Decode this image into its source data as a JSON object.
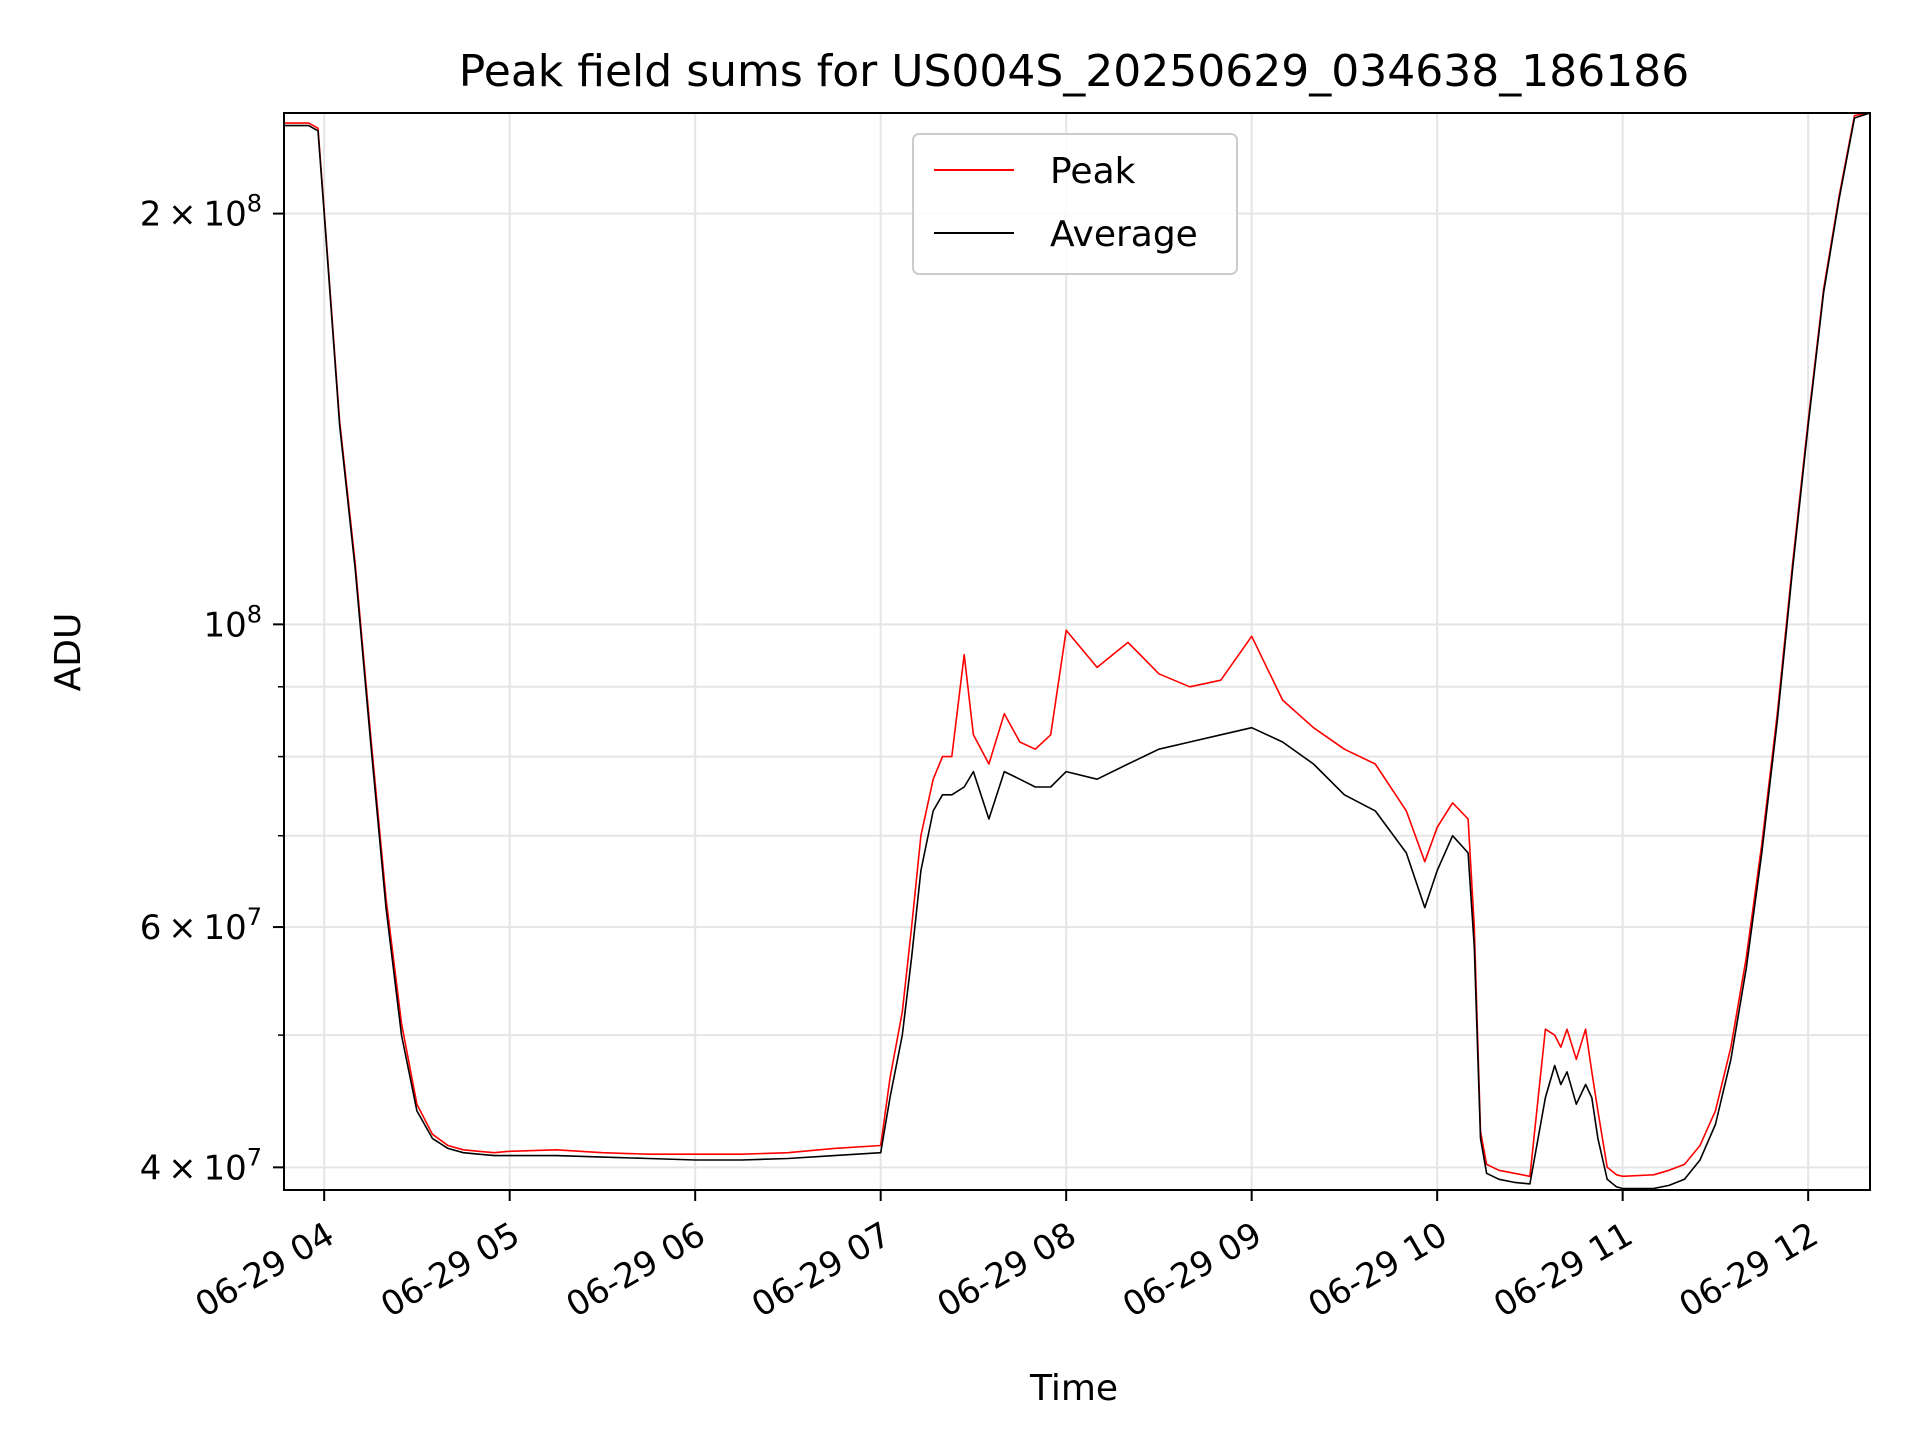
{
  "chart_data": {
    "type": "line",
    "title": "Peak field sums for US004S_20250629_034638_186186",
    "xlabel": "Time",
    "ylabel": "ADU",
    "yscale": "log",
    "ylim": [
      38500000,
      237000000
    ],
    "xlim": [
      "06-29 03:47",
      "06-29 12:20"
    ],
    "x_ticks": [
      "06-29 04",
      "06-29 05",
      "06-29 06",
      "06-29 07",
      "06-29 08",
      "06-29 09",
      "06-29 10",
      "06-29 11",
      "06-29 12"
    ],
    "y_major_ticks": [
      {
        "value": 40000000,
        "mantissa": "4",
        "exp": "7",
        "has_mantissa": true
      },
      {
        "value": 60000000,
        "mantissa": "6",
        "exp": "7",
        "has_mantissa": true
      },
      {
        "value": 100000000,
        "mantissa": "",
        "exp": "8",
        "has_mantissa": false
      },
      {
        "value": 200000000,
        "mantissa": "2",
        "exp": "8",
        "has_mantissa": true
      }
    ],
    "y_minor_ticks": [
      50000000,
      70000000,
      80000000,
      90000000
    ],
    "grid": true,
    "legend_position": "top-center",
    "series": [
      {
        "name": "Peak",
        "color": "#ff0000"
      },
      {
        "name": "Average",
        "color": "#000000"
      }
    ],
    "x": [
      "03:47",
      "03:52",
      "03:55",
      "03:58",
      "04:00",
      "04:05",
      "04:10",
      "04:15",
      "04:20",
      "04:25",
      "04:30",
      "04:35",
      "04:40",
      "04:45",
      "04:50",
      "04:55",
      "05:00",
      "05:15",
      "05:30",
      "05:45",
      "06:00",
      "06:15",
      "06:30",
      "06:45",
      "07:00",
      "07:03",
      "07:07",
      "07:10",
      "07:13",
      "07:17",
      "07:20",
      "07:23",
      "07:27",
      "07:30",
      "07:35",
      "07:40",
      "07:45",
      "07:50",
      "07:55",
      "08:00",
      "08:10",
      "08:20",
      "08:30",
      "08:40",
      "08:50",
      "09:00",
      "09:10",
      "09:20",
      "09:30",
      "09:40",
      "09:50",
      "09:56",
      "10:00",
      "10:05",
      "10:10",
      "10:12",
      "10:14",
      "10:16",
      "10:18",
      "10:20",
      "10:25",
      "10:30",
      "10:35",
      "10:38",
      "10:40",
      "10:42",
      "10:45",
      "10:48",
      "10:50",
      "10:52",
      "10:55",
      "10:58",
      "11:00",
      "11:10",
      "11:15",
      "11:20",
      "11:25",
      "11:30",
      "11:35",
      "11:40",
      "11:45",
      "11:50",
      "11:55",
      "12:00",
      "12:05",
      "12:10",
      "12:15",
      "12:20"
    ],
    "average": [
      232000000,
      232000000,
      232000000,
      230000000,
      200000000,
      140000000,
      110000000,
      82000000,
      62000000,
      50000000,
      44000000,
      42000000,
      41300000,
      41000000,
      40900000,
      40800000,
      40800000,
      40800000,
      40700000,
      40600000,
      40500000,
      40500000,
      40600000,
      40800000,
      41000000,
      45000000,
      50000000,
      57000000,
      66000000,
      73000000,
      75000000,
      75000000,
      76000000,
      78000000,
      72000000,
      78000000,
      77000000,
      76000000,
      76000000,
      78000000,
      77000000,
      79000000,
      81000000,
      82000000,
      83000000,
      84000000,
      82000000,
      79000000,
      75000000,
      73000000,
      68000000,
      62000000,
      66000000,
      70000000,
      68000000,
      58000000,
      42000000,
      39600000,
      39400000,
      39200000,
      39000000,
      38900000,
      45000000,
      47500000,
      46000000,
      47000000,
      44500000,
      46000000,
      45000000,
      42000000,
      39200000,
      38700000,
      38600000,
      38600000,
      38800000,
      39200000,
      40500000,
      43000000,
      48000000,
      56000000,
      68000000,
      85000000,
      110000000,
      140000000,
      175000000,
      205000000,
      235000000,
      237000000
    ],
    "peak": [
      233000000,
      233000000,
      233000000,
      231000000,
      201000000,
      141000000,
      111000000,
      83000000,
      63000000,
      51000000,
      44500000,
      42300000,
      41500000,
      41200000,
      41100000,
      41000000,
      41100000,
      41200000,
      41000000,
      40900000,
      40900000,
      40900000,
      41000000,
      41300000,
      41500000,
      46500000,
      52000000,
      60000000,
      70000000,
      77000000,
      80000000,
      80000000,
      95000000,
      83000000,
      79000000,
      86000000,
      82000000,
      81000000,
      83000000,
      99000000,
      93000000,
      97000000,
      92000000,
      90000000,
      91000000,
      98000000,
      88000000,
      84000000,
      81000000,
      79000000,
      73000000,
      67000000,
      71000000,
      74000000,
      72000000,
      60000000,
      42500000,
      40200000,
      40000000,
      39800000,
      39600000,
      39400000,
      50500000,
      50000000,
      49000000,
      50500000,
      48000000,
      50500000,
      47000000,
      44000000,
      40000000,
      39500000,
      39400000,
      39500000,
      39800000,
      40200000,
      41500000,
      44000000,
      49000000,
      57000000,
      69000000,
      86000000,
      111000000,
      141000000,
      176000000,
      206000000,
      236000000,
      237000000
    ]
  }
}
